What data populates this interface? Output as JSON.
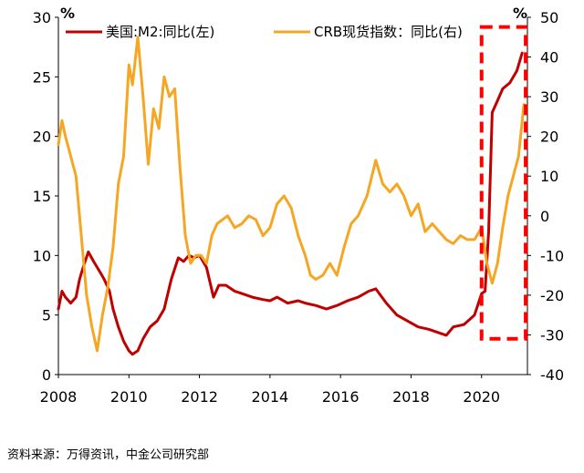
{
  "source_note": "资料来源：万得资讯，中金公司研究部",
  "chart_data": {
    "type": "line",
    "left_unit": "%",
    "right_unit": "%",
    "x_ticks": [
      "2008",
      "2010",
      "2012",
      "2014",
      "2016",
      "2018",
      "2020"
    ],
    "xlim": [
      2008,
      2021.3
    ],
    "ylim_left": [
      0,
      30
    ],
    "ylim_right": [
      -40,
      50
    ],
    "y_ticks_left": [
      "0",
      "5",
      "10",
      "15",
      "20",
      "25",
      "30"
    ],
    "y_ticks_right": [
      "-40",
      "-30",
      "-20",
      "-10",
      "0",
      "10",
      "20",
      "30",
      "40",
      "50"
    ],
    "legend_placement": "top",
    "highlight_box": {
      "x": [
        2020.0,
        2021.25
      ],
      "y_left": [
        3.0,
        27.5
      ],
      "color": "#ff0000"
    },
    "series": [
      {
        "name": "美国:M2:同比(左)",
        "axis": "left",
        "color": "#c00000",
        "x": [
          2008.0,
          2008.1,
          2008.2,
          2008.35,
          2008.5,
          2008.6,
          2008.7,
          2008.85,
          2009.0,
          2009.1,
          2009.2,
          2009.3,
          2009.45,
          2009.55,
          2009.7,
          2009.85,
          2010.0,
          2010.1,
          2010.25,
          2010.4,
          2010.6,
          2010.8,
          2011.0,
          2011.2,
          2011.4,
          2011.55,
          2011.7,
          2011.85,
          2012.0,
          2012.2,
          2012.4,
          2012.55,
          2012.75,
          2013.0,
          2013.2,
          2013.5,
          2013.8,
          2014.0,
          2014.2,
          2014.5,
          2014.8,
          2015.0,
          2015.3,
          2015.6,
          2015.9,
          2016.2,
          2016.5,
          2016.8,
          2017.0,
          2017.3,
          2017.6,
          2017.9,
          2018.2,
          2018.5,
          2018.8,
          2019.0,
          2019.2,
          2019.5,
          2019.8,
          2020.0,
          2020.1,
          2020.2,
          2020.3,
          2020.45,
          2020.6,
          2020.8,
          2021.0,
          2021.15
        ],
        "values": [
          5.5,
          7.0,
          6.5,
          6.0,
          6.5,
          8.0,
          9.0,
          10.3,
          9.5,
          9.0,
          8.5,
          8.0,
          7.0,
          5.5,
          4.0,
          2.8,
          2.0,
          1.7,
          2.0,
          3.0,
          4.0,
          4.5,
          5.5,
          8.0,
          9.8,
          9.5,
          10.0,
          9.8,
          10.0,
          9.0,
          6.5,
          7.5,
          7.5,
          7.0,
          6.8,
          6.5,
          6.3,
          6.2,
          6.5,
          6.0,
          6.2,
          6.0,
          5.8,
          5.5,
          5.8,
          6.2,
          6.5,
          7.0,
          7.2,
          6.0,
          5.0,
          4.5,
          4.0,
          3.8,
          3.5,
          3.3,
          4.0,
          4.2,
          5.0,
          6.8,
          7.0,
          12.0,
          22.0,
          23.0,
          24.0,
          24.5,
          25.5,
          27.0
        ]
      },
      {
        "name": "CRB现货指数：同比(右)",
        "axis": "right",
        "color": "#f5a623",
        "x": [
          2008.0,
          2008.1,
          2008.2,
          2008.35,
          2008.5,
          2008.65,
          2008.8,
          2008.95,
          2009.1,
          2009.25,
          2009.4,
          2009.55,
          2009.7,
          2009.85,
          2010.0,
          2010.1,
          2010.25,
          2010.4,
          2010.55,
          2010.7,
          2010.85,
          2011.0,
          2011.15,
          2011.3,
          2011.45,
          2011.6,
          2011.75,
          2011.9,
          2012.05,
          2012.2,
          2012.35,
          2012.5,
          2012.65,
          2012.8,
          2013.0,
          2013.2,
          2013.4,
          2013.6,
          2013.8,
          2014.0,
          2014.2,
          2014.4,
          2014.6,
          2014.8,
          2015.0,
          2015.15,
          2015.3,
          2015.5,
          2015.7,
          2015.9,
          2016.1,
          2016.3,
          2016.5,
          2016.75,
          2017.0,
          2017.2,
          2017.4,
          2017.6,
          2017.8,
          2018.0,
          2018.2,
          2018.4,
          2018.6,
          2018.8,
          2019.0,
          2019.2,
          2019.4,
          2019.6,
          2019.8,
          2020.0,
          2020.15,
          2020.3,
          2020.45,
          2020.6,
          2020.75,
          2020.9,
          2021.05,
          2021.2
        ],
        "values": [
          18.0,
          24.0,
          20.0,
          15.0,
          10.0,
          -5.0,
          -20.0,
          -28.0,
          -34.0,
          -25.0,
          -18.0,
          -8.0,
          8.0,
          15.0,
          38.0,
          33.0,
          45.0,
          30.0,
          13.0,
          27.0,
          22.0,
          35.0,
          30.0,
          32.0,
          12.0,
          -5.0,
          -12.0,
          -10.0,
          -10.0,
          -12.0,
          -5.0,
          -2.0,
          -1.0,
          0.0,
          -3.0,
          -2.0,
          0.0,
          -1.0,
          -5.0,
          -3.0,
          3.0,
          5.0,
          2.0,
          -5.0,
          -10.0,
          -15.0,
          -16.0,
          -15.0,
          -12.0,
          -15.0,
          -8.0,
          -2.0,
          0.0,
          5.0,
          14.0,
          8.0,
          6.0,
          8.0,
          5.0,
          0.0,
          3.0,
          -4.0,
          -2.0,
          -4.0,
          -6.0,
          -7.0,
          -5.0,
          -6.0,
          -6.0,
          -3.0,
          -12.0,
          -17.0,
          -12.0,
          -3.0,
          5.0,
          10.0,
          15.0,
          28.0
        ]
      }
    ]
  }
}
